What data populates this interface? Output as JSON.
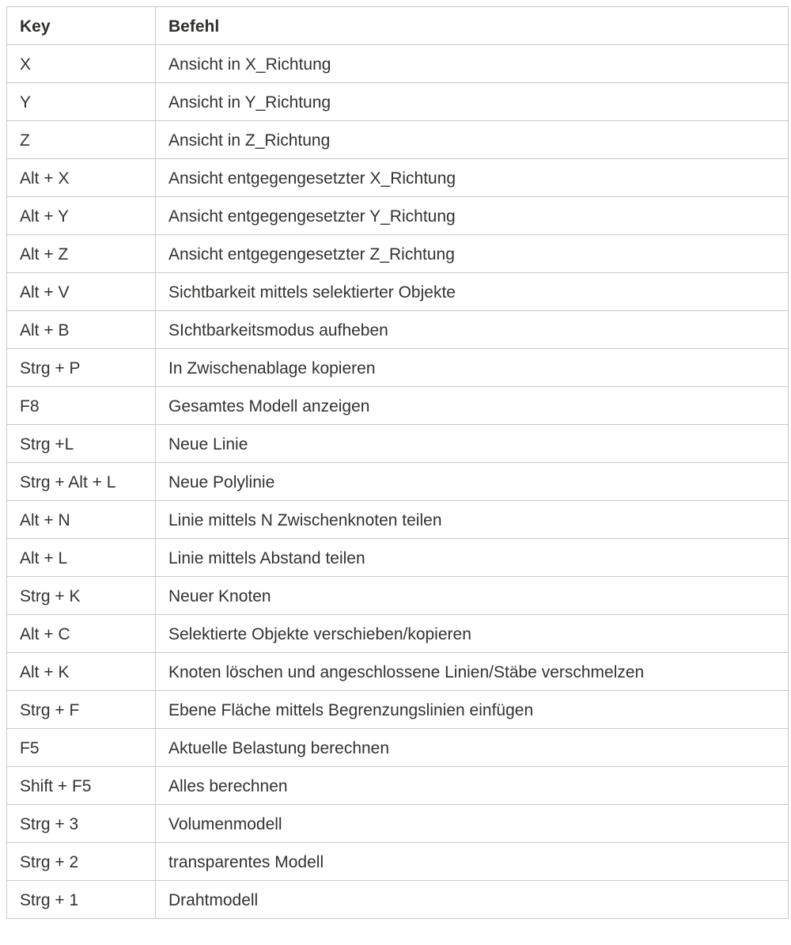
{
  "table": {
    "columns": [
      {
        "label": "Key"
      },
      {
        "label": "Befehl"
      }
    ],
    "rows": [
      {
        "key": "X",
        "command": "Ansicht in X_Richtung"
      },
      {
        "key": "Y",
        "command": "Ansicht in Y_Richtung"
      },
      {
        "key": "Z",
        "command": "Ansicht in Z_Richtung"
      },
      {
        "key": "Alt + X",
        "command": "Ansicht entgegengesetzter X_Richtung"
      },
      {
        "key": "Alt + Y",
        "command": "Ansicht entgegengesetzter Y_Richtung"
      },
      {
        "key": "Alt + Z",
        "command": "Ansicht entgegengesetzter Z_Richtung"
      },
      {
        "key": "Alt + V",
        "command": "Sichtbarkeit mittels selektierter Objekte"
      },
      {
        "key": "Alt + B",
        "command": "SIchtbarkeitsmodus aufheben"
      },
      {
        "key": "Strg + P",
        "command": "In Zwischenablage kopieren"
      },
      {
        "key": "F8",
        "command": "Gesamtes Modell anzeigen"
      },
      {
        "key": "Strg +L",
        "command": "Neue Linie"
      },
      {
        "key": "Strg + Alt + L",
        "command": "Neue Polylinie"
      },
      {
        "key": "Alt + N",
        "command": "Linie mittels N Zwischenknoten teilen"
      },
      {
        "key": "Alt + L",
        "command": "Linie mittels Abstand teilen"
      },
      {
        "key": "Strg + K",
        "command": "Neuer Knoten"
      },
      {
        "key": "Alt + C",
        "command": "Selektierte Objekte verschieben/kopieren"
      },
      {
        "key": "Alt + K",
        "command": "Knoten löschen und angeschlossene Linien/Stäbe verschmelzen"
      },
      {
        "key": "Strg + F",
        "command": "Ebene Fläche mittels Begrenzungslinien einfügen"
      },
      {
        "key": "F5",
        "command": "Aktuelle Belastung berechnen"
      },
      {
        "key": "Shift + F5",
        "command": "Alles berechnen"
      },
      {
        "key": "Strg + 3",
        "command": "Volumenmodell"
      },
      {
        "key": "Strg + 2",
        "command": "transparentes Modell"
      },
      {
        "key": "Strg + 1",
        "command": "Drahtmodell"
      }
    ]
  },
  "colors": {
    "border": "#c4cacf",
    "text": "#333231",
    "header_text": "#2f2e2c",
    "background": "#ffffff"
  }
}
